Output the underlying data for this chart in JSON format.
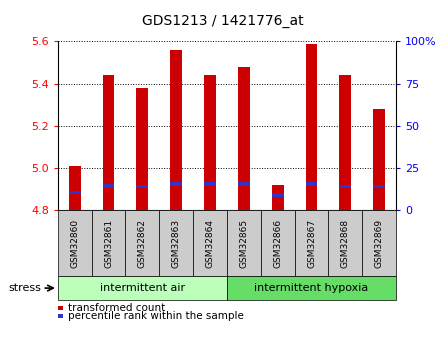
{
  "title": "GDS1213 / 1421776_at",
  "samples": [
    "GSM32860",
    "GSM32861",
    "GSM32862",
    "GSM32863",
    "GSM32864",
    "GSM32865",
    "GSM32866",
    "GSM32867",
    "GSM32868",
    "GSM32869"
  ],
  "transformed_count": [
    5.01,
    5.44,
    5.38,
    5.56,
    5.44,
    5.48,
    4.92,
    5.59,
    5.44,
    5.28
  ],
  "percentile_rank": [
    4.885,
    4.915,
    4.913,
    4.925,
    4.925,
    4.925,
    4.875,
    4.925,
    4.913,
    4.913
  ],
  "ymin": 4.8,
  "ymax": 5.6,
  "yticks": [
    4.8,
    5.0,
    5.2,
    5.4,
    5.6
  ],
  "right_yticks": [
    0,
    25,
    50,
    75,
    100
  ],
  "bar_color": "#cc0000",
  "blue_color": "#3333cc",
  "group1_label": "intermittent air",
  "group2_label": "intermittent hypoxia",
  "group1_indices": [
    0,
    1,
    2,
    3,
    4
  ],
  "group2_indices": [
    5,
    6,
    7,
    8,
    9
  ],
  "group1_color": "#bbffbb",
  "group2_color": "#66dd66",
  "stress_label": "stress",
  "legend1": "transformed count",
  "legend2": "percentile rank within the sample",
  "tick_bg": "#cccccc",
  "bar_width": 0.35
}
